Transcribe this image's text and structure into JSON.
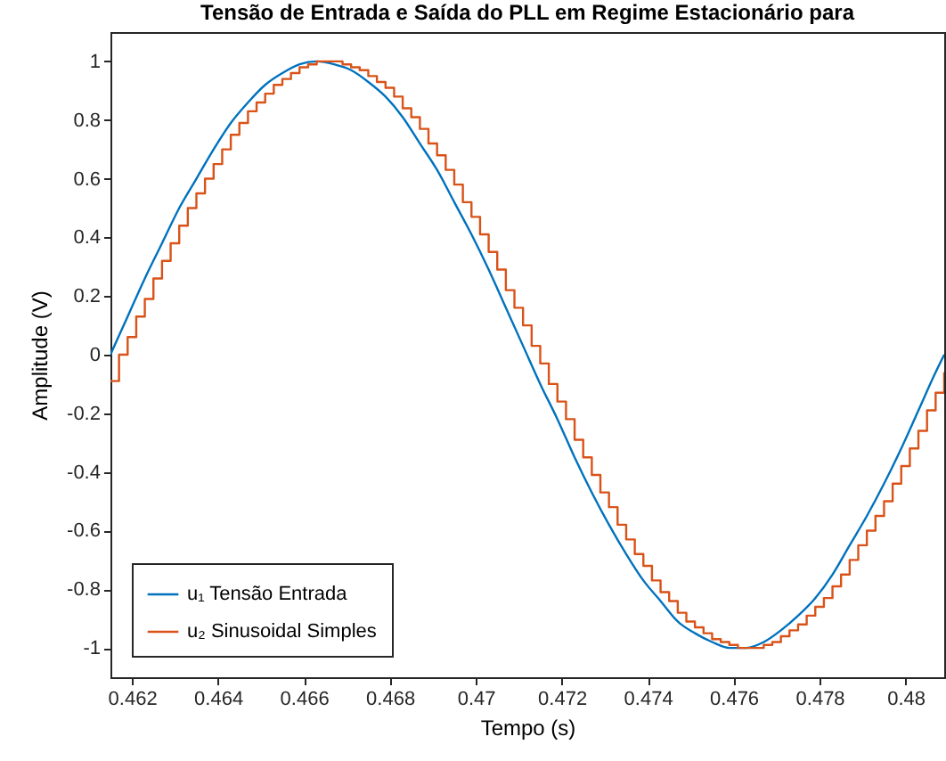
{
  "chart_data": {
    "type": "line",
    "title": "Tensão de Entrada e Saída do PLL em Regime Estacionário para",
    "xlabel": "Tempo (s)",
    "ylabel": "Amplitude (V)",
    "xlim": [
      0.4615,
      0.4809
    ],
    "xticks": [
      0.462,
      0.464,
      0.466,
      0.468,
      0.47,
      0.472,
      0.474,
      0.476,
      0.478,
      0.48
    ],
    "ylim": [
      -1.1,
      1.1
    ],
    "yticks": [
      -1,
      -0.8,
      -0.6,
      -0.4,
      -0.2,
      0,
      0.2,
      0.4,
      0.6,
      0.8,
      1
    ],
    "grid": false,
    "legend": "bottom left",
    "line_style": "solid",
    "marker": "none",
    "series": [
      {
        "name": "u₁ Tensão Entrada",
        "color": "#0072bd",
        "type": "line",
        "x": [
          0.4615,
          0.4619,
          0.4623,
          0.4627,
          0.4631,
          0.4635,
          0.4639,
          0.4643,
          0.4647,
          0.4651,
          0.4655,
          0.4659,
          0.4663,
          0.4667,
          0.4671,
          0.4675,
          0.4679,
          0.4683,
          0.4687,
          0.4691,
          0.4695,
          0.4699,
          0.4703,
          0.4707,
          0.4711,
          0.4715,
          0.4719,
          0.4723,
          0.4727,
          0.4731,
          0.4735,
          0.4739,
          0.4743,
          0.4747,
          0.4751,
          0.4755,
          0.4759,
          0.4763,
          0.4767,
          0.4771,
          0.4775,
          0.4779,
          0.4783,
          0.4787,
          0.4791,
          0.4795,
          0.4799,
          0.4803,
          0.4807,
          0.4809
        ],
        "values": [
          0,
          0.13,
          0.26,
          0.38,
          0.5,
          0.6,
          0.7,
          0.79,
          0.86,
          0.92,
          0.96,
          0.99,
          1,
          0.99,
          0.97,
          0.93,
          0.88,
          0.81,
          0.72,
          0.63,
          0.52,
          0.41,
          0.29,
          0.16,
          0.03,
          -0.1,
          -0.22,
          -0.35,
          -0.47,
          -0.58,
          -0.68,
          -0.77,
          -0.84,
          -0.91,
          -0.95,
          -0.98,
          -1,
          -1,
          -0.98,
          -0.94,
          -0.89,
          -0.83,
          -0.75,
          -0.65,
          -0.55,
          -0.44,
          -0.32,
          -0.19,
          -0.06,
          0
        ]
      },
      {
        "name": "u₂ Sinusoidal Simples",
        "color": "#d95319",
        "type": "step",
        "x": [
          0.4615,
          0.4617,
          0.4619,
          0.4621,
          0.4623,
          0.4625,
          0.4627,
          0.4629,
          0.4631,
          0.4633,
          0.4635,
          0.4637,
          0.4639,
          0.4641,
          0.4643,
          0.4645,
          0.4647,
          0.4649,
          0.4651,
          0.4653,
          0.4655,
          0.4657,
          0.4659,
          0.4661,
          0.4663,
          0.4665,
          0.4667,
          0.4669,
          0.4671,
          0.4673,
          0.4675,
          0.4677,
          0.4679,
          0.4681,
          0.4683,
          0.4685,
          0.4687,
          0.4689,
          0.4691,
          0.4693,
          0.4695,
          0.4697,
          0.4699,
          0.4701,
          0.4703,
          0.4705,
          0.4707,
          0.4709,
          0.4711,
          0.4713,
          0.4715,
          0.4717,
          0.4719,
          0.4721,
          0.4723,
          0.4725,
          0.4727,
          0.4729,
          0.4731,
          0.4733,
          0.4735,
          0.4737,
          0.4739,
          0.4741,
          0.4743,
          0.4745,
          0.4747,
          0.4749,
          0.4751,
          0.4753,
          0.4755,
          0.4757,
          0.4759,
          0.4761,
          0.4763,
          0.4765,
          0.4767,
          0.4769,
          0.4771,
          0.4773,
          0.4775,
          0.4777,
          0.4779,
          0.4781,
          0.4783,
          0.4785,
          0.4787,
          0.4789,
          0.4791,
          0.4793,
          0.4795,
          0.4797,
          0.4799,
          0.4801,
          0.4803,
          0.4805,
          0.4807,
          0.4809
        ],
        "values": [
          -0.09,
          0,
          0.06,
          0.13,
          0.19,
          0.26,
          0.32,
          0.38,
          0.44,
          0.5,
          0.55,
          0.6,
          0.65,
          0.7,
          0.75,
          0.79,
          0.83,
          0.86,
          0.89,
          0.92,
          0.94,
          0.96,
          0.98,
          0.99,
          1,
          1,
          1,
          0.99,
          0.98,
          0.97,
          0.95,
          0.93,
          0.91,
          0.88,
          0.84,
          0.81,
          0.77,
          0.72,
          0.68,
          0.63,
          0.58,
          0.52,
          0.47,
          0.41,
          0.35,
          0.29,
          0.22,
          0.16,
          0.1,
          0.03,
          -0.03,
          -0.1,
          -0.16,
          -0.22,
          -0.29,
          -0.35,
          -0.41,
          -0.47,
          -0.52,
          -0.58,
          -0.63,
          -0.68,
          -0.72,
          -0.77,
          -0.81,
          -0.84,
          -0.88,
          -0.91,
          -0.93,
          -0.95,
          -0.97,
          -0.98,
          -0.99,
          -1,
          -1,
          -1,
          -0.99,
          -0.98,
          -0.96,
          -0.94,
          -0.92,
          -0.89,
          -0.86,
          -0.83,
          -0.79,
          -0.75,
          -0.7,
          -0.65,
          -0.6,
          -0.55,
          -0.5,
          -0.44,
          -0.38,
          -0.32,
          -0.26,
          -0.19,
          -0.13,
          -0.06
        ]
      }
    ]
  }
}
